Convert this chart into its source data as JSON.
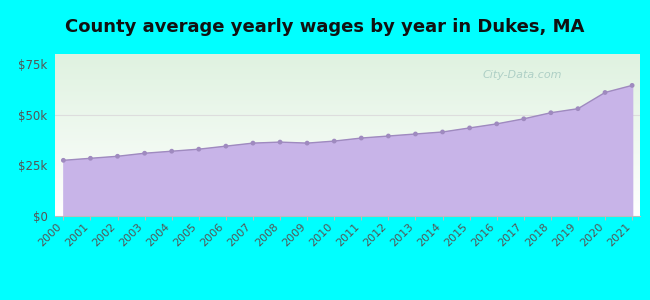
{
  "title": "County average yearly wages by year in Dukes, MA",
  "years": [
    2000,
    2001,
    2002,
    2003,
    2004,
    2005,
    2006,
    2007,
    2008,
    2009,
    2010,
    2011,
    2012,
    2013,
    2014,
    2015,
    2016,
    2017,
    2018,
    2019,
    2020,
    2021
  ],
  "wages": [
    27500,
    28500,
    29500,
    31000,
    32000,
    33000,
    34500,
    36000,
    36500,
    36000,
    37000,
    38500,
    39500,
    40500,
    41500,
    43500,
    45500,
    48000,
    51000,
    53000,
    61000,
    64500
  ],
  "fill_color": "#c8b4e8",
  "line_color": "#9f8abf",
  "dot_color": "#9f8abf",
  "background_color": "#00ffff",
  "plot_bg_top_color": "#dff2e0",
  "plot_bg_bottom_color": "#ffffff",
  "ytick_labels": [
    "$0",
    "$25k",
    "$50k",
    "$75k"
  ],
  "ytick_values": [
    0,
    25000,
    50000,
    75000
  ],
  "ylim": [
    0,
    80000
  ],
  "watermark": "City-Data.com",
  "title_fontsize": 13,
  "tick_fontsize": 8.5,
  "grid_color": "#cccccc"
}
